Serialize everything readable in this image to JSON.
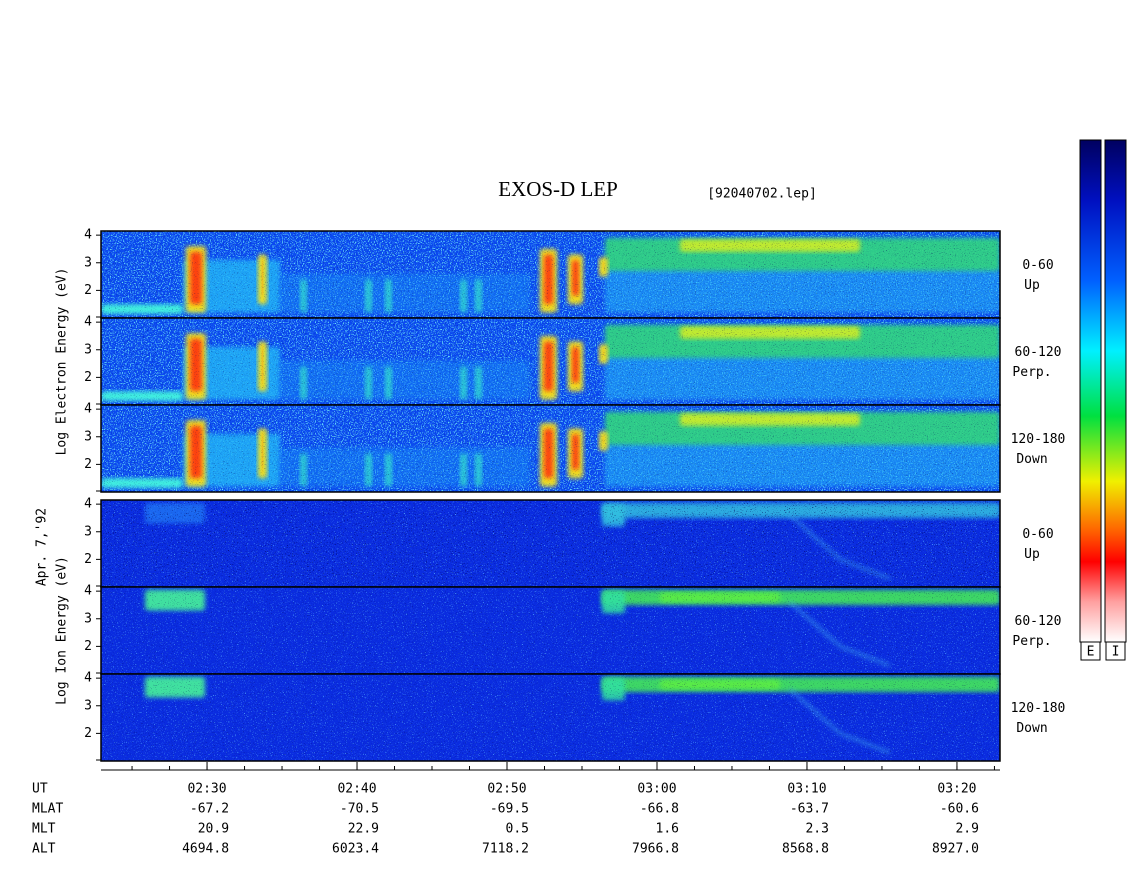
{
  "title": "EXOS-D LEP",
  "file": "[92040702.lep]",
  "date": "Apr. 7,'92",
  "groups": [
    {
      "label": "Log Electron Energy (eV)",
      "panels": [
        {
          "angle": "0-60",
          "direction": "Up"
        },
        {
          "angle": "60-120",
          "direction": "Perp."
        },
        {
          "angle": "120-180",
          "direction": "Down"
        }
      ]
    },
    {
      "label": "Log Ion Energy (eV)",
      "panels": [
        {
          "angle": "0-60",
          "direction": "Up"
        },
        {
          "angle": "60-120",
          "direction": "Perp."
        },
        {
          "angle": "120-180",
          "direction": "Down"
        }
      ]
    }
  ],
  "ylim": [
    1,
    4.15
  ],
  "yticks": [
    2,
    3,
    4
  ],
  "time_axis": {
    "label": "UT",
    "xlim": [
      142.93,
      202.87
    ],
    "ticks": [
      {
        "value": 150,
        "label": "02:30"
      },
      {
        "value": 160,
        "label": "02:40"
      },
      {
        "value": 170,
        "label": "02:50"
      },
      {
        "value": 180,
        "label": "03:00"
      },
      {
        "value": 190,
        "label": "03:10"
      },
      {
        "value": 200,
        "label": "03:20"
      }
    ]
  },
  "ephemeris": [
    {
      "name": "MLAT",
      "values": [
        "-67.2",
        "-70.5",
        "-69.5",
        "-66.8",
        "-63.7",
        "-60.6"
      ]
    },
    {
      "name": "MLT",
      "values": [
        "20.9",
        "22.9",
        "0.5",
        "1.6",
        "2.3",
        "2.9"
      ]
    },
    {
      "name": "ALT",
      "values": [
        "4694.8",
        "6023.4",
        "7118.2",
        "7966.8",
        "8568.8",
        "8927.0"
      ]
    }
  ],
  "colorbars": [
    "E",
    "I"
  ]
}
